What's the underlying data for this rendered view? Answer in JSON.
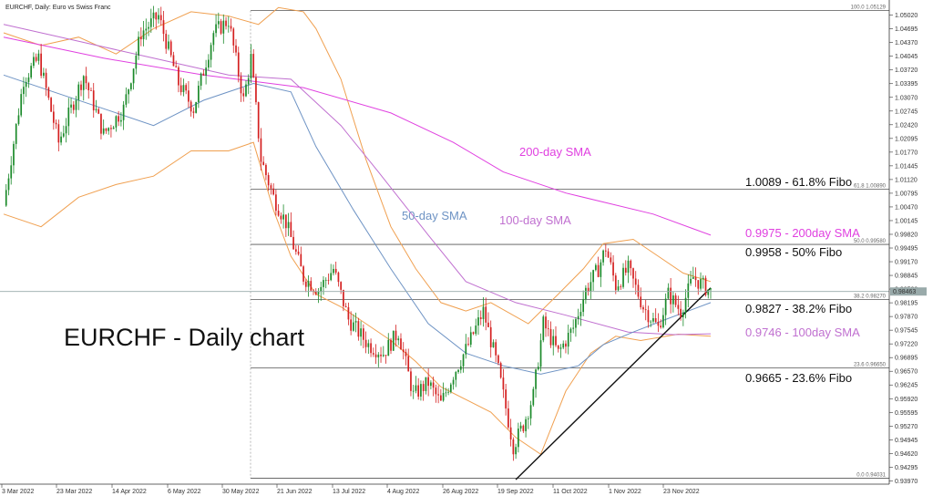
{
  "header": {
    "title": "EURCHF, Daily:  Euro vs Swiss Franc"
  },
  "big_title": "EURCHF - Daily chart",
  "colors": {
    "bull": "#1b8a2a",
    "bear": "#d42020",
    "sma200": "#e040e0",
    "sma100": "#c070d0",
    "sma50": "#6e93c4",
    "bollinger": "#f0a050",
    "fibo": "#555555",
    "trend": "#111111"
  },
  "chart_data": {
    "type": "candlestick",
    "title": "EURCHF, Daily:  Euro vs Swiss Franc",
    "ylim": [
      0.94,
      1.0525
    ],
    "y_ticks": [
      "1.05020",
      "1.04695",
      "1.04370",
      "1.04045",
      "1.03720",
      "1.03395",
      "1.03070",
      "1.02745",
      "1.02420",
      "1.02095",
      "1.01770",
      "1.01445",
      "1.01120",
      "1.00795",
      "1.00470",
      "1.00145",
      "0.99820",
      "0.99495",
      "0.99170",
      "0.98845",
      "0.98520",
      "0.98195",
      "0.97870",
      "0.97545",
      "0.97220",
      "0.96895",
      "0.96570",
      "0.96245",
      "0.95920",
      "0.95595",
      "0.95270",
      "0.94945",
      "0.94620",
      "0.94295",
      "0.93970"
    ],
    "x_ticks": [
      "3 Mar 2022",
      "23 Mar 2022",
      "14 Apr 2022",
      "6 May 2022",
      "30 May 2022",
      "21 Jun 2022",
      "13 Jul 2022",
      "4 Aug 2022",
      "26 Aug 2022",
      "19 Sep 2022",
      "11 Oct 2022",
      "1 Nov 2022",
      "23 Nov 2022"
    ],
    "current_price": "0.98463",
    "fibonacci": [
      {
        "level": "100.0",
        "price": "1.05129"
      },
      {
        "level": "61.8",
        "price": "1.00890"
      },
      {
        "level": "50.0",
        "price": "0.99580"
      },
      {
        "level": "38.2",
        "price": "0.98270"
      },
      {
        "level": "23.6",
        "price": "0.96650"
      },
      {
        "level": "0.0",
        "price": "0.94031"
      }
    ],
    "series_labels": [
      {
        "name": "200-day SMA"
      },
      {
        "name": "100-day SMA"
      },
      {
        "name": "50-day SMA"
      }
    ],
    "annotations": [
      {
        "text": "1.0089 - 61.8% Fibo"
      },
      {
        "text": "0.9975 - 200day SMA"
      },
      {
        "text": "0.9958 - 50% Fibo"
      },
      {
        "text": "0.9827 - 38.2% Fibo"
      },
      {
        "text": "0.9746 - 100day SMA"
      },
      {
        "text": "0.9665 - 23.6% Fibo"
      }
    ],
    "sma200": [
      [
        0,
        1.045
      ],
      [
        40,
        1.04
      ],
      [
        80,
        1.036
      ],
      [
        120,
        1.033
      ],
      [
        155,
        1.027
      ],
      [
        180,
        1.02
      ],
      [
        200,
        1.013
      ],
      [
        225,
        1.008
      ],
      [
        260,
        1.003
      ],
      [
        283,
        0.998
      ]
    ],
    "sma100": [
      [
        0,
        1.048
      ],
      [
        30,
        1.044
      ],
      [
        60,
        1.04
      ],
      [
        90,
        1.036
      ],
      [
        115,
        1.035
      ],
      [
        135,
        1.024
      ],
      [
        150,
        1.013
      ],
      [
        170,
        0.998
      ],
      [
        185,
        0.987
      ],
      [
        205,
        0.982
      ],
      [
        225,
        0.979
      ],
      [
        250,
        0.975
      ],
      [
        268,
        0.9744
      ],
      [
        283,
        0.9746
      ]
    ],
    "sma50": [
      [
        0,
        1.036
      ],
      [
        20,
        1.032
      ],
      [
        40,
        1.028
      ],
      [
        60,
        1.024
      ],
      [
        80,
        1.03
      ],
      [
        100,
        1.034
      ],
      [
        115,
        1.032
      ],
      [
        125,
        1.019
      ],
      [
        140,
        1.004
      ],
      [
        155,
        0.99
      ],
      [
        170,
        0.977
      ],
      [
        185,
        0.97
      ],
      [
        200,
        0.967
      ],
      [
        215,
        0.965
      ],
      [
        230,
        0.967
      ],
      [
        240,
        0.972
      ],
      [
        252,
        0.975
      ],
      [
        265,
        0.978
      ],
      [
        283,
        0.982
      ]
    ],
    "bb_upper": [
      [
        0,
        1.046
      ],
      [
        15,
        1.043
      ],
      [
        30,
        1.045
      ],
      [
        45,
        1.041
      ],
      [
        60,
        1.047
      ],
      [
        75,
        1.051
      ],
      [
        90,
        1.05
      ],
      [
        102,
        1.048
      ],
      [
        110,
        1.052
      ],
      [
        120,
        1.051
      ],
      [
        125,
        1.047
      ],
      [
        135,
        1.035
      ],
      [
        145,
        1.016
      ],
      [
        155,
        1.0
      ],
      [
        165,
        0.99
      ],
      [
        175,
        0.982
      ],
      [
        185,
        0.98
      ],
      [
        195,
        0.982
      ],
      [
        210,
        0.977
      ],
      [
        222,
        0.984
      ],
      [
        232,
        0.99
      ],
      [
        240,
        0.996
      ],
      [
        252,
        0.997
      ],
      [
        262,
        0.993
      ],
      [
        272,
        0.989
      ],
      [
        283,
        0.987
      ]
    ],
    "bb_lower": [
      [
        0,
        1.003
      ],
      [
        15,
        1.0
      ],
      [
        30,
        1.007
      ],
      [
        45,
        1.01
      ],
      [
        60,
        1.012
      ],
      [
        75,
        1.018
      ],
      [
        90,
        1.018
      ],
      [
        100,
        1.02
      ],
      [
        108,
        1.004
      ],
      [
        115,
        0.993
      ],
      [
        125,
        0.984
      ],
      [
        135,
        0.981
      ],
      [
        145,
        0.977
      ],
      [
        155,
        0.973
      ],
      [
        165,
        0.968
      ],
      [
        175,
        0.962
      ],
      [
        185,
        0.959
      ],
      [
        195,
        0.956
      ],
      [
        205,
        0.95
      ],
      [
        215,
        0.946
      ],
      [
        225,
        0.961
      ],
      [
        235,
        0.97
      ],
      [
        245,
        0.974
      ],
      [
        255,
        0.973
      ],
      [
        270,
        0.9745
      ],
      [
        283,
        0.974
      ]
    ],
    "trendline": [
      [
        205,
        0.94
      ],
      [
        283,
        0.9855
      ]
    ]
  }
}
